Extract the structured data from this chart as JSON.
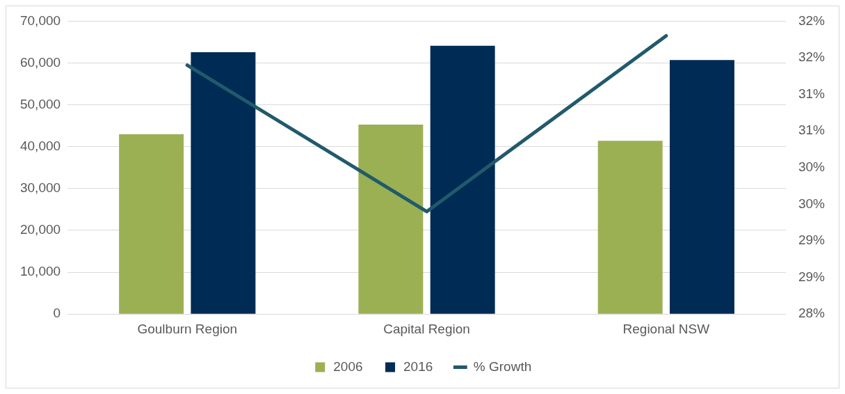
{
  "chart_data": {
    "type": "bar",
    "categories": [
      "Goulburn Region",
      "Capital Region",
      "Regional NSW"
    ],
    "series": [
      {
        "name": "2006",
        "color": "#9bb053",
        "values": [
          43000,
          45300,
          41400
        ]
      },
      {
        "name": "2016",
        "color": "#002b54",
        "values": [
          62600,
          64100,
          60700
        ]
      },
      {
        "name": "% Growth",
        "type": "line",
        "axis": "y2",
        "color": "#215a6b",
        "values": [
          31.4,
          29.4,
          31.8
        ]
      }
    ],
    "ylim": [
      0,
      70000
    ],
    "yticks": [
      0,
      {
        "value": 10000,
        "label": "10,000"
      },
      {
        "value": 20000,
        "label": "20,000"
      },
      {
        "value": 30000,
        "label": "30,000"
      },
      {
        "value": 40000,
        "label": "40,000"
      },
      {
        "value": 50000,
        "label": "50,000"
      },
      {
        "value": 60000,
        "label": "60,000"
      },
      {
        "value": 70000,
        "label": "70,000"
      }
    ],
    "y2lim": [
      28,
      32
    ],
    "y2ticks": [
      {
        "value": 28,
        "label": "28%"
      },
      {
        "value": 28.5,
        "label": "29%"
      },
      {
        "value": 29,
        "label": "29%"
      },
      {
        "value": 29.5,
        "label": "30%"
      },
      {
        "value": 30,
        "label": "30%"
      },
      {
        "value": 30.5,
        "label": "31%"
      },
      {
        "value": 31,
        "label": "31%"
      },
      {
        "value": 31.5,
        "label": "32%"
      },
      {
        "value": 32,
        "label": "32%"
      }
    ],
    "grid": "y",
    "legend": "bottom",
    "marker": "none"
  }
}
